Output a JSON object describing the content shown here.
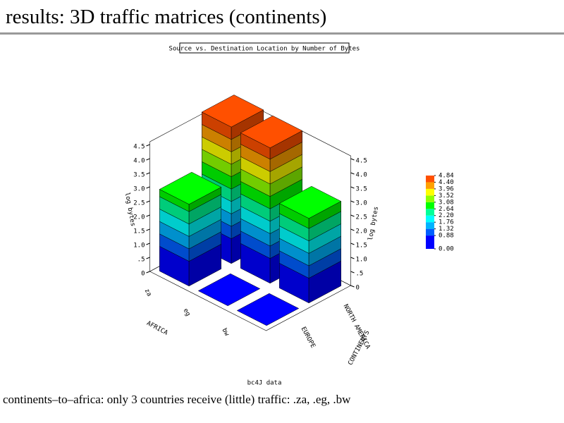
{
  "slide_title": "results: 3D traffic matrices  (continents)",
  "caption": "continents–to–africa: only 3 countries receive (little) traffic: .za, .eg, .bw",
  "chart_data": {
    "type": "bar3d",
    "title": "Source vs. Destination Location by Number of Bytes",
    "footer": "bc4J data",
    "x_label": "AFRICA",
    "y_label": "CONTINENTS",
    "z_label": "log bytes",
    "categories": [
      "za",
      "eg",
      "bw"
    ],
    "series": [
      {
        "name": "EUROPE",
        "values": [
          2.9,
          0,
          0
        ]
      },
      {
        "name": "NORTH AMERICA",
        "values": [
          4.84,
          4.8,
          3.0
        ]
      }
    ],
    "zlim": [
      0,
      4.84
    ],
    "zticks": [
      0,
      {
        "value": 0.5,
        "label": ".5"
      },
      {
        "value": 1,
        "label": "1.0"
      },
      {
        "value": 1.5,
        "label": "1.5"
      },
      {
        "value": 2,
        "label": "2.0"
      },
      {
        "value": 2.5,
        "label": "2.5"
      },
      {
        "value": 3,
        "label": "3.0"
      },
      {
        "value": 3.5,
        "label": "3.5"
      },
      {
        "value": 4,
        "label": "4.0"
      },
      {
        "value": 4.5,
        "label": "4.5"
      }
    ],
    "colorbar_ticks": [
      {
        "value": 0,
        "label": "0.00"
      },
      {
        "value": 0.88,
        "label": "0.88"
      },
      {
        "value": 1.32,
        "label": "1.32"
      },
      {
        "value": 1.76,
        "label": "1.76"
      },
      {
        "value": 2.2,
        "label": "2.20"
      },
      {
        "value": 2.64,
        "label": "2.64"
      },
      {
        "value": 3.08,
        "label": "3.08"
      },
      {
        "value": 3.52,
        "label": "3.52"
      },
      {
        "value": 3.96,
        "label": "3.96"
      },
      {
        "value": 4.4,
        "label": "4.40"
      },
      {
        "value": 4.84,
        "label": "4.84"
      }
    ],
    "colors": [
      "#0000ff",
      "#0060ff",
      "#00b4ff",
      "#00ffff",
      "#00ff99",
      "#00ff00",
      "#90ff00",
      "#ffff00",
      "#ffa000",
      "#ff5000"
    ]
  }
}
